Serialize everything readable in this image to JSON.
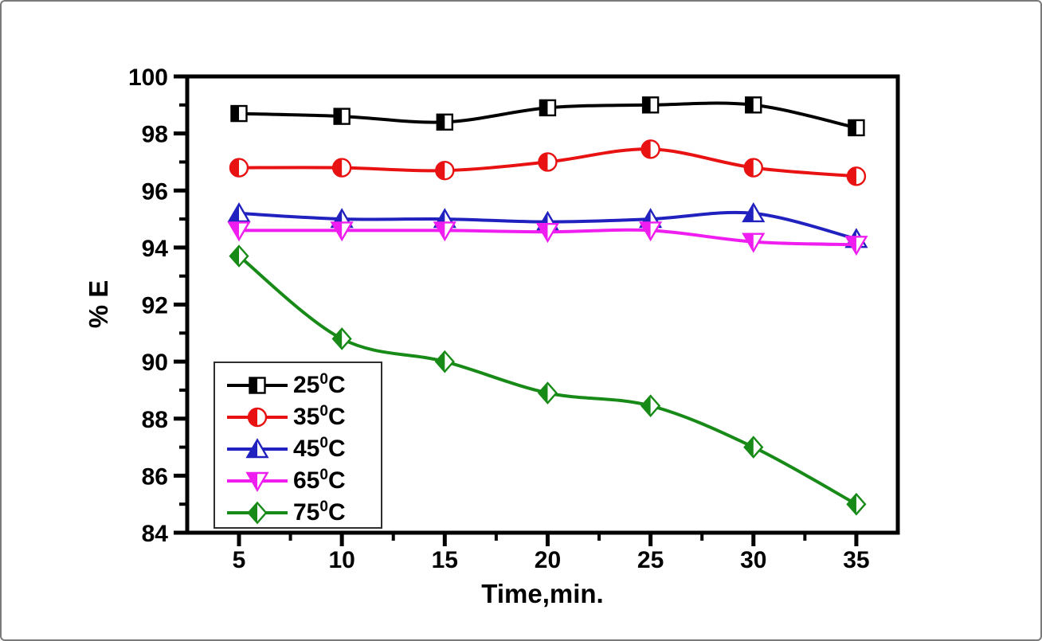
{
  "figure": {
    "background": "#ffffff",
    "border_color": "#7a7a7a",
    "axis_color": "#000000"
  },
  "chart_data": {
    "type": "line",
    "title": "",
    "xlabel": "Time,min.",
    "ylabel": "% E",
    "grid": false,
    "legend_position": "lower-left",
    "xlim": [
      2.484,
      37.016
    ],
    "ylim": [
      84,
      100
    ],
    "x_ticks": [
      5,
      10,
      15,
      20,
      25,
      30,
      35
    ],
    "x_minor_ticks": [
      7.5,
      12.5,
      17.5,
      22.5,
      27.5,
      32.5
    ],
    "y_ticks": [
      84,
      86,
      88,
      90,
      92,
      94,
      96,
      98,
      100
    ],
    "y_minor_ticks": [
      85,
      87,
      89,
      91,
      93,
      95,
      97,
      99
    ],
    "x": [
      5,
      10,
      15,
      20,
      25,
      30,
      35
    ],
    "series": [
      {
        "name": "25C",
        "label_parts": {
          "temp": "25",
          "sup": "0",
          "unit": "C"
        },
        "color": "#000000",
        "marker": "square-half",
        "values": [
          98.7,
          98.6,
          98.4,
          98.9,
          99.0,
          99.0,
          98.2
        ]
      },
      {
        "name": "35C",
        "label_parts": {
          "temp": "35",
          "sup": "0",
          "unit": "C"
        },
        "color": "#e81212",
        "marker": "circle-half",
        "values": [
          96.8,
          96.8,
          96.7,
          97.0,
          97.45,
          96.8,
          96.5
        ]
      },
      {
        "name": "45C",
        "label_parts": {
          "temp": "45",
          "sup": "0",
          "unit": "C"
        },
        "color": "#2121bf",
        "marker": "triangle-up-half",
        "values": [
          95.2,
          95.0,
          95.0,
          94.9,
          95.0,
          95.2,
          94.3
        ]
      },
      {
        "name": "65C",
        "label_parts": {
          "temp": "65",
          "sup": "0",
          "unit": "C"
        },
        "color": "#ef1def",
        "marker": "triangle-down-half",
        "values": [
          94.6,
          94.6,
          94.6,
          94.55,
          94.6,
          94.2,
          94.1
        ]
      },
      {
        "name": "75C",
        "label_parts": {
          "temp": "75",
          "sup": "0",
          "unit": "C"
        },
        "color": "#178a17",
        "marker": "diamond-half",
        "values": [
          93.7,
          90.8,
          90.0,
          88.9,
          88.45,
          87.0,
          85.0
        ]
      }
    ]
  }
}
